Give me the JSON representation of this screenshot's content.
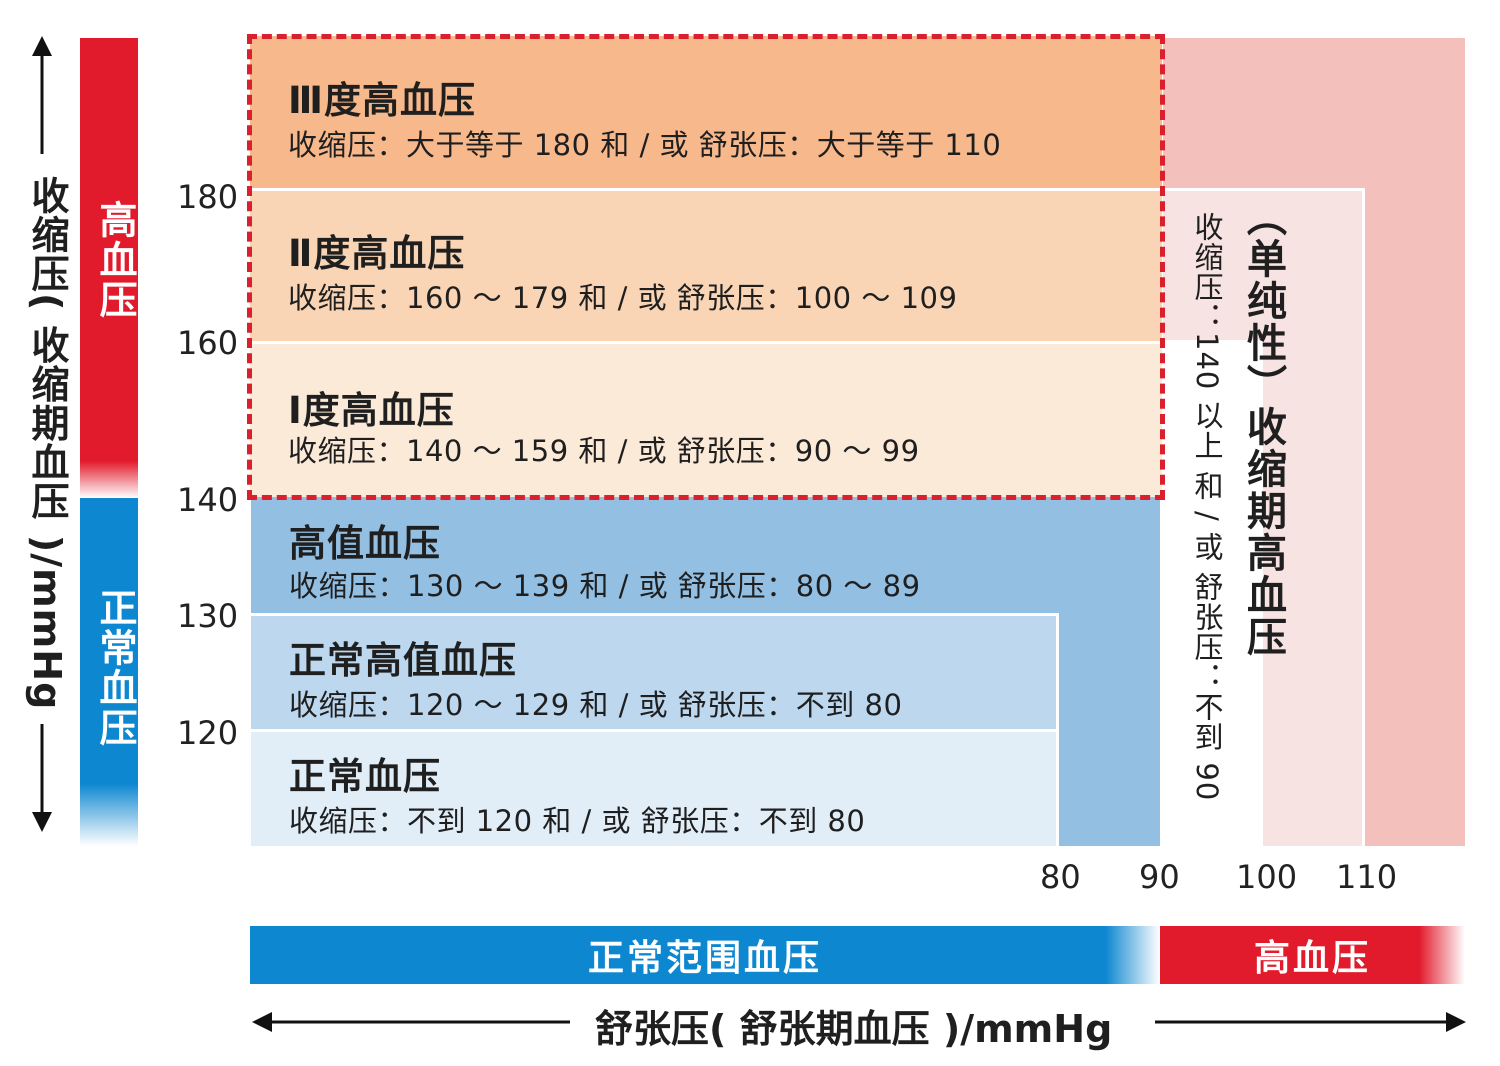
{
  "chart_data": {
    "type": "heatmap",
    "title": "",
    "xlabel": "舒张压( 舒张期血压 )/mmHg",
    "ylabel": "收缩压( 收缩期血压 )/mmHg",
    "x_ticks": [
      "80",
      "90",
      "100",
      "110"
    ],
    "y_ticks": [
      "180",
      "160",
      "140",
      "130",
      "120"
    ],
    "categories": [
      {
        "name": "Ⅲ度高血压",
        "criteria": "收缩压：大于等于 180 和 / 或 舒张压：大于等于 110",
        "color": "#f7b88c",
        "systolic_min": 180,
        "diastolic_min": 110
      },
      {
        "name": "Ⅱ度高血压",
        "criteria": "收缩压：160 ～ 179 和 / 或 舒张压：100 ～ 109",
        "color": "#f9d5b5",
        "systolic_range": [
          160,
          179
        ],
        "diastolic_range": [
          100,
          109
        ]
      },
      {
        "name": "Ⅰ度高血压",
        "criteria": "收缩压：140 ～ 159 和 / 或 舒张压：90 ～ 99",
        "color": "#fcead8",
        "systolic_range": [
          140,
          159
        ],
        "diastolic_range": [
          90,
          99
        ]
      },
      {
        "name": "高值血压",
        "criteria": "收缩压：130 ～ 139 和 / 或 舒张压：80 ～ 89",
        "color": "#93bfe3",
        "systolic_range": [
          130,
          139
        ],
        "diastolic_range": [
          80,
          89
        ]
      },
      {
        "name": "正常高值血压",
        "criteria": "收缩压：120 ～ 129 和 / 或 舒张压：不到 80",
        "color": "#bcd7ee",
        "systolic_range": [
          120,
          129
        ],
        "diastolic_max": 80
      },
      {
        "name": "正常血压",
        "criteria": "收缩压：不到 120 和 / 或 舒张压：不到 80",
        "color": "#e1eef8",
        "systolic_max": 120,
        "diastolic_max": 80
      }
    ],
    "isolated": {
      "name": "（单纯性）收缩期高血压",
      "criteria": "收缩压：140 以上 和 / 或 舒张压：不到 90",
      "color": "#f4c0bc"
    },
    "y_groups": [
      {
        "label": "高血压",
        "color": "#e21b2c"
      },
      {
        "label": "正常血压",
        "color": "#0d87d0"
      }
    ],
    "x_groups": [
      {
        "label": "正常范围血压",
        "color": "#0d87d0"
      },
      {
        "label": "高血压",
        "color": "#e21b2c"
      }
    ]
  }
}
